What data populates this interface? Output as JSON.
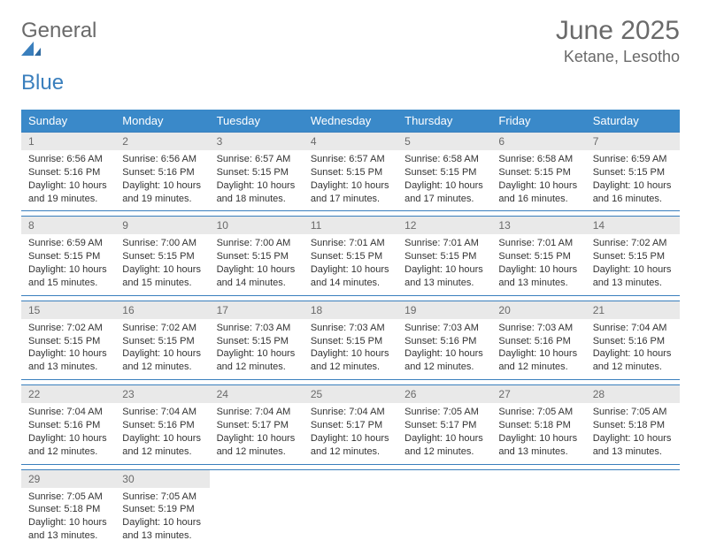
{
  "logo": {
    "general": "General",
    "blue": "Blue"
  },
  "colors": {
    "header_bg": "#3a89c9",
    "border": "#3a7fbd",
    "daynum_bg": "#e9e9e9",
    "text_gray": "#6a6a6a"
  },
  "title": "June 2025",
  "location": "Ketane, Lesotho",
  "weekdays": [
    "Sunday",
    "Monday",
    "Tuesday",
    "Wednesday",
    "Thursday",
    "Friday",
    "Saturday"
  ],
  "weeks": [
    [
      {
        "num": "1",
        "sunrise": "Sunrise: 6:56 AM",
        "sunset": "Sunset: 5:16 PM",
        "day1": "Daylight: 10 hours",
        "day2": "and 19 minutes."
      },
      {
        "num": "2",
        "sunrise": "Sunrise: 6:56 AM",
        "sunset": "Sunset: 5:16 PM",
        "day1": "Daylight: 10 hours",
        "day2": "and 19 minutes."
      },
      {
        "num": "3",
        "sunrise": "Sunrise: 6:57 AM",
        "sunset": "Sunset: 5:15 PM",
        "day1": "Daylight: 10 hours",
        "day2": "and 18 minutes."
      },
      {
        "num": "4",
        "sunrise": "Sunrise: 6:57 AM",
        "sunset": "Sunset: 5:15 PM",
        "day1": "Daylight: 10 hours",
        "day2": "and 17 minutes."
      },
      {
        "num": "5",
        "sunrise": "Sunrise: 6:58 AM",
        "sunset": "Sunset: 5:15 PM",
        "day1": "Daylight: 10 hours",
        "day2": "and 17 minutes."
      },
      {
        "num": "6",
        "sunrise": "Sunrise: 6:58 AM",
        "sunset": "Sunset: 5:15 PM",
        "day1": "Daylight: 10 hours",
        "day2": "and 16 minutes."
      },
      {
        "num": "7",
        "sunrise": "Sunrise: 6:59 AM",
        "sunset": "Sunset: 5:15 PM",
        "day1": "Daylight: 10 hours",
        "day2": "and 16 minutes."
      }
    ],
    [
      {
        "num": "8",
        "sunrise": "Sunrise: 6:59 AM",
        "sunset": "Sunset: 5:15 PM",
        "day1": "Daylight: 10 hours",
        "day2": "and 15 minutes."
      },
      {
        "num": "9",
        "sunrise": "Sunrise: 7:00 AM",
        "sunset": "Sunset: 5:15 PM",
        "day1": "Daylight: 10 hours",
        "day2": "and 15 minutes."
      },
      {
        "num": "10",
        "sunrise": "Sunrise: 7:00 AM",
        "sunset": "Sunset: 5:15 PM",
        "day1": "Daylight: 10 hours",
        "day2": "and 14 minutes."
      },
      {
        "num": "11",
        "sunrise": "Sunrise: 7:01 AM",
        "sunset": "Sunset: 5:15 PM",
        "day1": "Daylight: 10 hours",
        "day2": "and 14 minutes."
      },
      {
        "num": "12",
        "sunrise": "Sunrise: 7:01 AM",
        "sunset": "Sunset: 5:15 PM",
        "day1": "Daylight: 10 hours",
        "day2": "and 13 minutes."
      },
      {
        "num": "13",
        "sunrise": "Sunrise: 7:01 AM",
        "sunset": "Sunset: 5:15 PM",
        "day1": "Daylight: 10 hours",
        "day2": "and 13 minutes."
      },
      {
        "num": "14",
        "sunrise": "Sunrise: 7:02 AM",
        "sunset": "Sunset: 5:15 PM",
        "day1": "Daylight: 10 hours",
        "day2": "and 13 minutes."
      }
    ],
    [
      {
        "num": "15",
        "sunrise": "Sunrise: 7:02 AM",
        "sunset": "Sunset: 5:15 PM",
        "day1": "Daylight: 10 hours",
        "day2": "and 13 minutes."
      },
      {
        "num": "16",
        "sunrise": "Sunrise: 7:02 AM",
        "sunset": "Sunset: 5:15 PM",
        "day1": "Daylight: 10 hours",
        "day2": "and 12 minutes."
      },
      {
        "num": "17",
        "sunrise": "Sunrise: 7:03 AM",
        "sunset": "Sunset: 5:15 PM",
        "day1": "Daylight: 10 hours",
        "day2": "and 12 minutes."
      },
      {
        "num": "18",
        "sunrise": "Sunrise: 7:03 AM",
        "sunset": "Sunset: 5:15 PM",
        "day1": "Daylight: 10 hours",
        "day2": "and 12 minutes."
      },
      {
        "num": "19",
        "sunrise": "Sunrise: 7:03 AM",
        "sunset": "Sunset: 5:16 PM",
        "day1": "Daylight: 10 hours",
        "day2": "and 12 minutes."
      },
      {
        "num": "20",
        "sunrise": "Sunrise: 7:03 AM",
        "sunset": "Sunset: 5:16 PM",
        "day1": "Daylight: 10 hours",
        "day2": "and 12 minutes."
      },
      {
        "num": "21",
        "sunrise": "Sunrise: 7:04 AM",
        "sunset": "Sunset: 5:16 PM",
        "day1": "Daylight: 10 hours",
        "day2": "and 12 minutes."
      }
    ],
    [
      {
        "num": "22",
        "sunrise": "Sunrise: 7:04 AM",
        "sunset": "Sunset: 5:16 PM",
        "day1": "Daylight: 10 hours",
        "day2": "and 12 minutes."
      },
      {
        "num": "23",
        "sunrise": "Sunrise: 7:04 AM",
        "sunset": "Sunset: 5:16 PM",
        "day1": "Daylight: 10 hours",
        "day2": "and 12 minutes."
      },
      {
        "num": "24",
        "sunrise": "Sunrise: 7:04 AM",
        "sunset": "Sunset: 5:17 PM",
        "day1": "Daylight: 10 hours",
        "day2": "and 12 minutes."
      },
      {
        "num": "25",
        "sunrise": "Sunrise: 7:04 AM",
        "sunset": "Sunset: 5:17 PM",
        "day1": "Daylight: 10 hours",
        "day2": "and 12 minutes."
      },
      {
        "num": "26",
        "sunrise": "Sunrise: 7:05 AM",
        "sunset": "Sunset: 5:17 PM",
        "day1": "Daylight: 10 hours",
        "day2": "and 12 minutes."
      },
      {
        "num": "27",
        "sunrise": "Sunrise: 7:05 AM",
        "sunset": "Sunset: 5:18 PM",
        "day1": "Daylight: 10 hours",
        "day2": "and 13 minutes."
      },
      {
        "num": "28",
        "sunrise": "Sunrise: 7:05 AM",
        "sunset": "Sunset: 5:18 PM",
        "day1": "Daylight: 10 hours",
        "day2": "and 13 minutes."
      }
    ],
    [
      {
        "num": "29",
        "sunrise": "Sunrise: 7:05 AM",
        "sunset": "Sunset: 5:18 PM",
        "day1": "Daylight: 10 hours",
        "day2": "and 13 minutes."
      },
      {
        "num": "30",
        "sunrise": "Sunrise: 7:05 AM",
        "sunset": "Sunset: 5:19 PM",
        "day1": "Daylight: 10 hours",
        "day2": "and 13 minutes."
      },
      {
        "empty": true
      },
      {
        "empty": true
      },
      {
        "empty": true
      },
      {
        "empty": true
      },
      {
        "empty": true
      }
    ]
  ]
}
